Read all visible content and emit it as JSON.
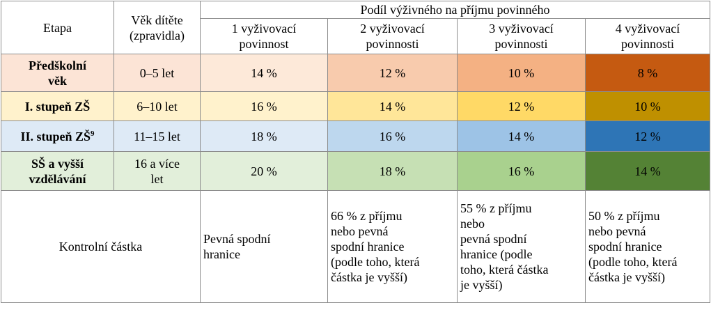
{
  "header": {
    "etapa": "Etapa",
    "vek_line1": "Věk dítěte",
    "vek_line2": "(zpravidla)",
    "podil": "Podíl výživného na příjmu povinného",
    "cols": [
      {
        "line1": "1 vyživovací",
        "line2": "povinnost"
      },
      {
        "line1": "2 vyživovací",
        "line2": "povinnosti"
      },
      {
        "line1": "3 vyživovací",
        "line2": "povinnosti"
      },
      {
        "line1": "4 vyživovací",
        "line2": "povinnosti"
      }
    ]
  },
  "rows": [
    {
      "stage_line1": "Předškolní",
      "stage_line2": "věk",
      "age_line1": "0–5 let",
      "age_line2": "",
      "values": [
        "14 %",
        "12 %",
        "10 %",
        "8 %"
      ],
      "colors": [
        "#fce4d6",
        "#fde9d9",
        "#f8cbad",
        "#f4b183",
        "#c55a11"
      ]
    },
    {
      "stage_line1": "I. stupeň ZŠ",
      "stage_line2": "",
      "age_line1": "6–10 let",
      "age_line2": "",
      "values": [
        "16 %",
        "14 %",
        "12 %",
        "10 %"
      ],
      "colors": [
        "#fff2cc",
        "#fff2cc",
        "#ffe699",
        "#ffd966",
        "#bf9000"
      ]
    },
    {
      "stage_line1": "II. stupeň ZŠ",
      "stage_sup": "9",
      "stage_line2": "",
      "age_line1": "11–15 let",
      "age_line2": "",
      "values": [
        "18 %",
        "16 %",
        "14 %",
        "12 %"
      ],
      "colors": [
        "#deeaf6",
        "#deeaf6",
        "#bdd7ee",
        "#9dc3e6",
        "#2e75b6"
      ]
    },
    {
      "stage_line1": "SŠ a vyšší",
      "stage_line2": "vzdělávání",
      "age_line1": "16 a více",
      "age_line2": "let",
      "values": [
        "20 %",
        "18 %",
        "16 %",
        "14 %"
      ],
      "colors": [
        "#e2efda",
        "#e2efda",
        "#c6e0b4",
        "#a9d18e",
        "#548235"
      ]
    }
  ],
  "control": {
    "label": "Kontrolní částka",
    "c1": [
      "Pevná spodní",
      "hranice"
    ],
    "c2": [
      "66 % z příjmu",
      "nebo pevná",
      "spodní hranice",
      "(podle toho, která",
      "částka je vyšší)"
    ],
    "c3": [
      "55 % z příjmu",
      "nebo",
      "pevná spodní",
      "hranice (podle",
      "toho, která částka",
      "je vyšší)"
    ],
    "c4": [
      "50 % z příjmu",
      "nebo pevná",
      "spodní hranice",
      "(podle toho, která",
      "částka je vyšší)"
    ]
  }
}
